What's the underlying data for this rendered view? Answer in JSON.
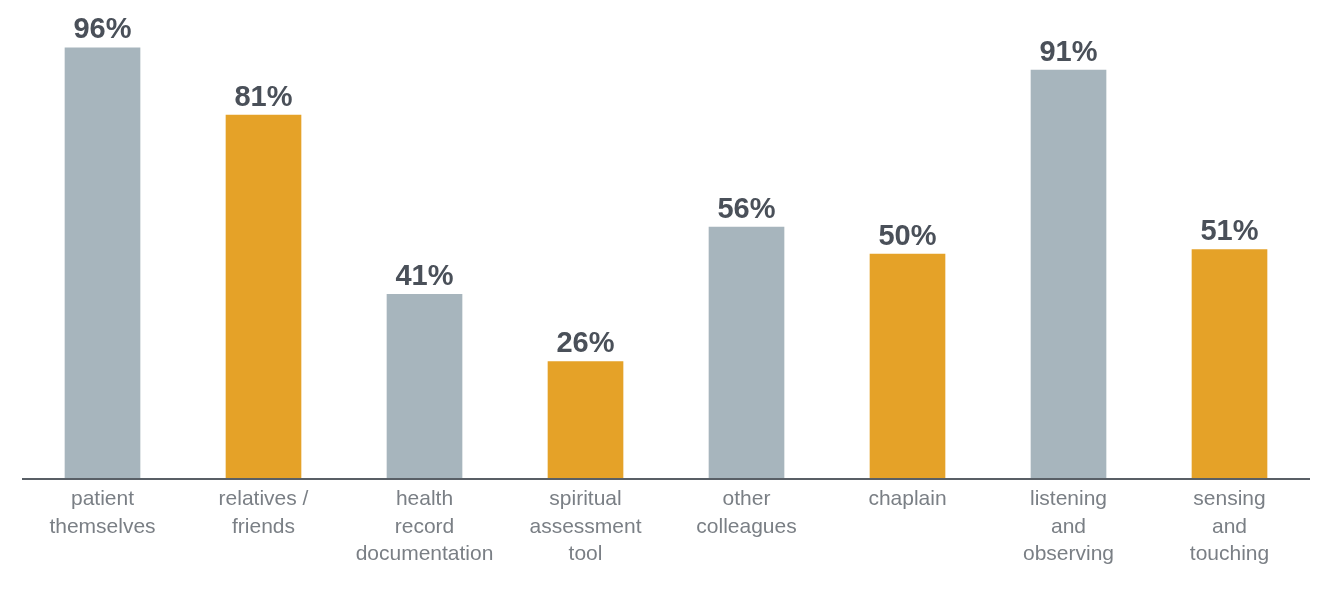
{
  "chart_data": {
    "type": "bar",
    "categories": [
      "patient\nthemselves",
      "relatives /\nfriends",
      "health\nrecord\ndocumentation",
      "spiritual\nassessment\ntool",
      "other\ncolleagues",
      "chaplain",
      "listening\nand\nobserving",
      "sensing\nand\ntouching"
    ],
    "values": [
      96,
      81,
      41,
      26,
      56,
      50,
      91,
      51
    ],
    "value_labels": [
      "96%",
      "81%",
      "41%",
      "26%",
      "56%",
      "50%",
      "91%",
      "51%"
    ],
    "colors": [
      "#a7b5bd",
      "#e5a228",
      "#a7b5bd",
      "#e5a228",
      "#a7b5bd",
      "#e5a228",
      "#a7b5bd",
      "#e5a228"
    ],
    "legend": false
  }
}
